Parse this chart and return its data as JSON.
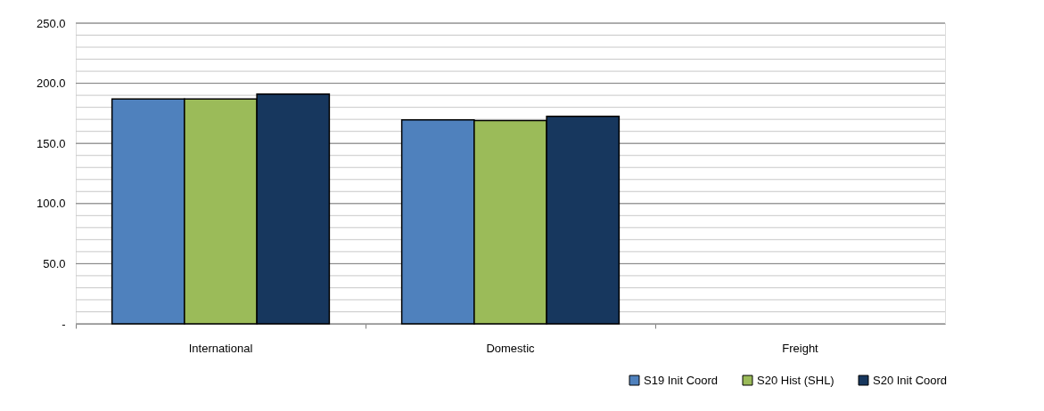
{
  "chart_data": {
    "type": "bar",
    "categories": [
      "International",
      "Domestic",
      "Freight"
    ],
    "series": [
      {
        "name": "S19 Init Coord",
        "color": "#4f81bd",
        "values": [
          187,
          169.5,
          null
        ]
      },
      {
        "name": "S20 Hist (SHL)",
        "color": "#9bbb59",
        "values": [
          187,
          169,
          null
        ]
      },
      {
        "name": "S20 Init Coord",
        "color": "#17375e",
        "values": [
          191,
          172.5,
          null
        ]
      }
    ],
    "ylim": [
      0,
      250
    ],
    "yticks": [
      {
        "value": 0,
        "label": "-"
      },
      {
        "value": 10,
        "label": null
      },
      {
        "value": 20,
        "label": null
      },
      {
        "value": 30,
        "label": null
      },
      {
        "value": 40,
        "label": null
      },
      {
        "value": 50,
        "label": "50.0"
      },
      {
        "value": 60,
        "label": null
      },
      {
        "value": 70,
        "label": null
      },
      {
        "value": 80,
        "label": null
      },
      {
        "value": 90,
        "label": null
      },
      {
        "value": 100,
        "label": "100.0"
      },
      {
        "value": 110,
        "label": null
      },
      {
        "value": 120,
        "label": null
      },
      {
        "value": 130,
        "label": null
      },
      {
        "value": 140,
        "label": null
      },
      {
        "value": 150,
        "label": "150.0"
      },
      {
        "value": 160,
        "label": null
      },
      {
        "value": 170,
        "label": null
      },
      {
        "value": 180,
        "label": null
      },
      {
        "value": 190,
        "label": null
      },
      {
        "value": 200,
        "label": "200.0"
      },
      {
        "value": 210,
        "label": null
      },
      {
        "value": 220,
        "label": null
      },
      {
        "value": 230,
        "label": null
      },
      {
        "value": 240,
        "label": null
      },
      {
        "value": 250,
        "label": "250.0"
      }
    ],
    "grid": "y",
    "legend": "bottom right"
  }
}
